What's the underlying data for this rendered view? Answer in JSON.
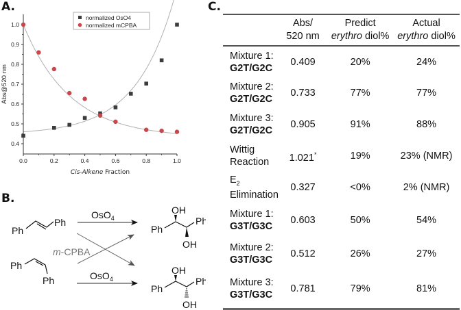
{
  "panels": {
    "a": "A.",
    "b": "B.",
    "c": "C."
  },
  "chart_data": {
    "type": "scatter",
    "title": "",
    "xlabel_italic": "Cis-Alkene",
    "xlabel_rest": " Fraction",
    "ylabel": "Abs@520 nm",
    "xlim": [
      0,
      1.0
    ],
    "ylim": [
      0.35,
      1.05
    ],
    "xticks": [
      "0.0",
      "0.2",
      "0.4",
      "0.6",
      "0.8",
      "1.0"
    ],
    "yticks": [
      "0.4",
      "0.5",
      "0.6",
      "0.7",
      "0.8",
      "0.9",
      "1.0"
    ],
    "legend_position": "top-center",
    "series": [
      {
        "name": "normalized OsO4",
        "marker": "square",
        "color": "#3c3c3c",
        "x": [
          0.0,
          0.2,
          0.3,
          0.4,
          0.5,
          0.6,
          0.7,
          0.8,
          0.9,
          1.0
        ],
        "y": [
          0.44,
          0.48,
          0.495,
          0.53,
          0.553,
          0.583,
          0.652,
          0.703,
          0.82,
          1.0
        ]
      },
      {
        "name": "normalized mCPBA",
        "marker": "circle",
        "color": "#c9474c",
        "x": [
          0.0,
          0.1,
          0.2,
          0.3,
          0.4,
          0.5,
          0.6,
          0.8,
          0.9,
          1.0
        ],
        "y": [
          1.0,
          0.86,
          0.776,
          0.655,
          0.626,
          0.542,
          0.511,
          0.47,
          0.465,
          0.46
        ]
      }
    ],
    "fit_color": "#b0b0b0"
  },
  "scheme": {
    "trans_left": "Ph",
    "trans_right": "Ph",
    "cis_top": "Ph",
    "cis_bottom": "Ph",
    "reagent_top": "OsO",
    "reagent_top_sub": "4",
    "reagent_bottom": "OsO",
    "reagent_bottom_sub": "4",
    "cross_reagent_italic": "m",
    "cross_reagent_rest": "-CPBA",
    "product_top": {
      "oh_up": "OH",
      "oh_down": "OH",
      "ph_left": "Ph",
      "ph_right": "Ph"
    },
    "product_bottom": {
      "oh_up": "OH",
      "oh_down": "OH",
      "ph_left": "Ph",
      "ph_right": "Ph"
    }
  },
  "table": {
    "headers": {
      "abs_line1": "Abs/",
      "abs_line2": "520 nm",
      "predict_line1": "Predict",
      "predict_italic": "erythro",
      "predict_rest": " diol%",
      "actual_line1": "Actual",
      "actual_italic": "erythro",
      "actual_rest": " diol%"
    },
    "rows": [
      {
        "line1": "Mixture 1:",
        "line2": "G2T/G2C",
        "abs": "0.409",
        "predict": "20%",
        "actual": "24%"
      },
      {
        "line1": "Mixture 2:",
        "line2": "G2T/G2C",
        "abs": "0.733",
        "predict": "77%",
        "actual": "77%"
      },
      {
        "line1": "Mixture 3:",
        "line2": "G2T/G2C",
        "abs": "0.905",
        "predict": "91%",
        "actual": "88%"
      },
      {
        "line1": "Wittig",
        "line2": "Reaction",
        "abs": "1.021",
        "abs_sup": "*",
        "predict": "19%",
        "actual": "23% (NMR)"
      },
      {
        "line1": "E",
        "line1_sub": "2",
        "line2": "Elimination",
        "abs": "0.327",
        "predict": "<0%",
        "actual": "2% (NMR)"
      },
      {
        "line1": "Mixture 1:",
        "line2": "G3T/G3C",
        "abs": "0.603",
        "predict": "50%",
        "actual": "54%"
      },
      {
        "line1": "Mixture 2:",
        "line2": "G3T/G3C",
        "abs": "0.512",
        "predict": "26%",
        "actual": "27%"
      },
      {
        "line1": "Mixture 3:",
        "line2": "G3T/G3C",
        "abs": "0.781",
        "predict": "79%",
        "actual": "81%"
      }
    ]
  }
}
